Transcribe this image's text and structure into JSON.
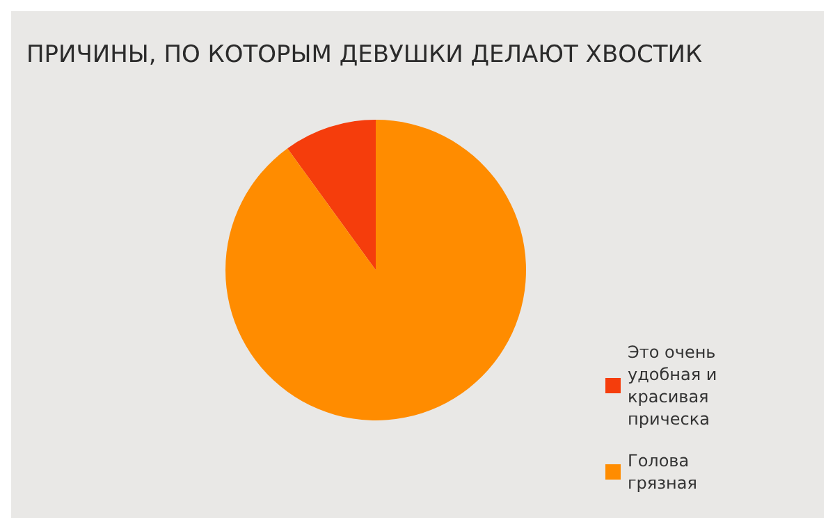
{
  "chart_data": {
    "type": "pie",
    "title": "ПРИЧИНЫ, ПО КОТОРЫМ ДЕВУШКИ ДЕЛАЮТ ХВОСТИК",
    "categories": [
      "Это очень удобная и красивая прическа",
      "Голова грязная"
    ],
    "values": [
      10,
      90
    ],
    "colors": [
      "#f53d0c",
      "#ff8c00"
    ],
    "legend": "bottom right"
  }
}
